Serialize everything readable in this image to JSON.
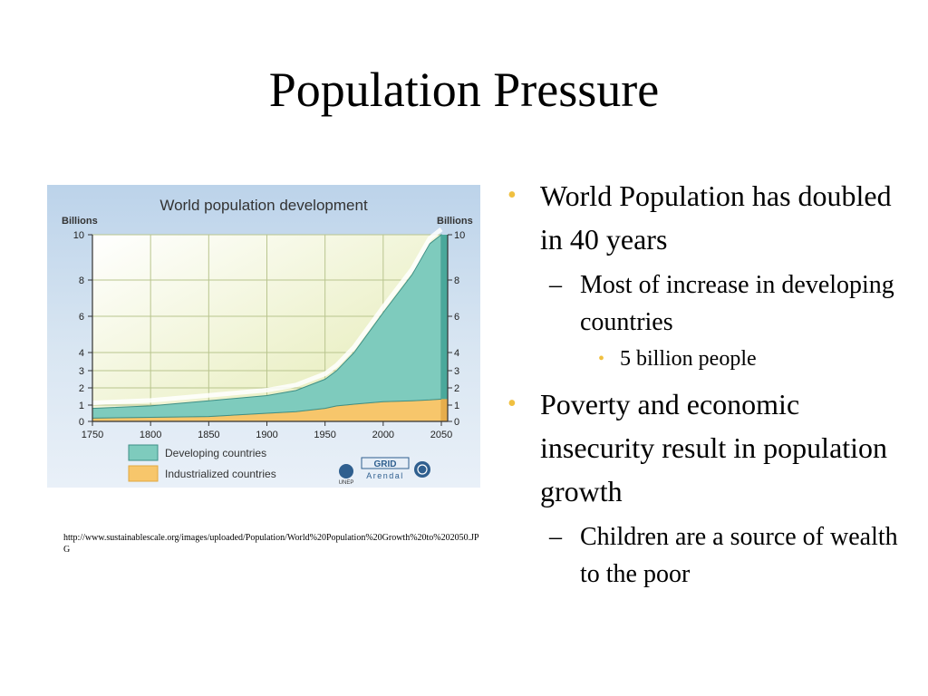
{
  "slide": {
    "title": "Population Pressure",
    "source_url": "http://www.sustainablescale.org/images/uploaded/Population/World%20Population%20Growth%20to%202050.JPG"
  },
  "bullets": [
    {
      "level": 1,
      "text": "World Population has doubled in 40 years"
    },
    {
      "level": 2,
      "text": "Most of increase in developing countries"
    },
    {
      "level": 3,
      "text": "5 billion people"
    },
    {
      "level": 1,
      "text": "Poverty and economic insecurity result in population growth"
    },
    {
      "level": 2,
      "text": "Children are a source of wealth to the poor"
    }
  ],
  "chart_data": {
    "type": "area",
    "stacked": true,
    "title": "World population development",
    "ylabel_left": "Billions",
    "ylabel_right": "Billions",
    "xlim": [
      1750,
      2050
    ],
    "ylim": [
      0,
      10
    ],
    "x_ticks": [
      1750,
      1800,
      1850,
      1900,
      1950,
      2000,
      2050
    ],
    "y_ticks": [
      0,
      1,
      2,
      3,
      4,
      6,
      8,
      10
    ],
    "grid": true,
    "legend_position": "bottom-left",
    "x": [
      1750,
      1800,
      1850,
      1900,
      1925,
      1950,
      1960,
      1975,
      2000,
      2025,
      2040,
      2050
    ],
    "series": [
      {
        "name": "Industrialized countries",
        "color": "#f7c66b",
        "values": [
          0.2,
          0.25,
          0.3,
          0.5,
          0.6,
          0.8,
          0.95,
          1.05,
          1.2,
          1.25,
          1.3,
          1.35
        ]
      },
      {
        "name": "Developing countries",
        "color": "#7ecbbd",
        "values": [
          0.6,
          0.7,
          0.95,
          1.05,
          1.25,
          1.7,
          2.05,
          2.95,
          5.0,
          7.0,
          8.3,
          8.65
        ]
      }
    ],
    "logo_labels": [
      "UNEP",
      "GRID",
      "Arendal"
    ]
  }
}
